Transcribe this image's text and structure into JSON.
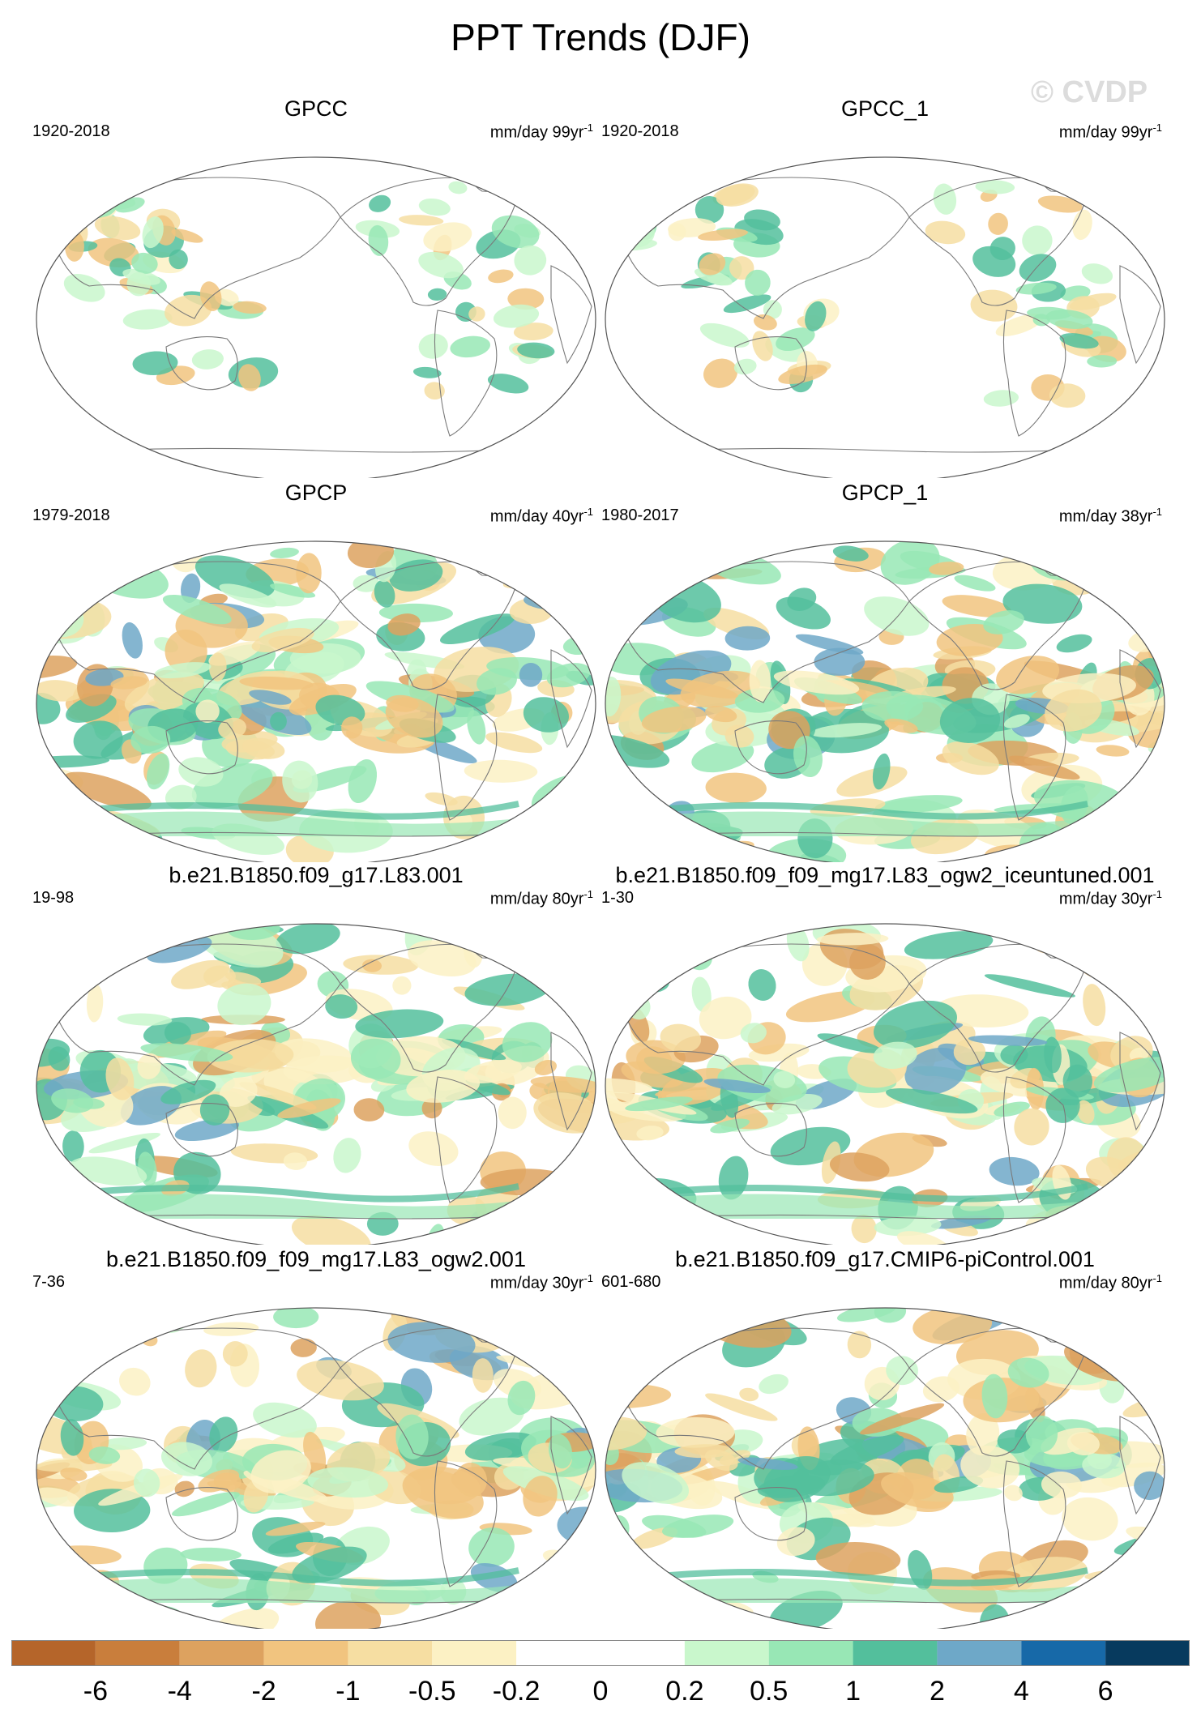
{
  "title": "PPT Trends (DJF)",
  "watermark": "© CVDP",
  "panels": [
    {
      "title": "GPCC",
      "period": "1920-2018",
      "units": "mm/day 99yr",
      "units_exp": "-1",
      "field": "sparse"
    },
    {
      "title": "GPCC_1",
      "period": "1920-2018",
      "units": "mm/day 99yr",
      "units_exp": "-1",
      "field": "sparse"
    },
    {
      "title": "GPCP",
      "period": "1979-2018",
      "units": "mm/day 40yr",
      "units_exp": "-1",
      "field": "dense"
    },
    {
      "title": "GPCP_1",
      "period": "1980-2017",
      "units": "mm/day 38yr",
      "units_exp": "-1",
      "field": "dense"
    },
    {
      "title": "b.e21.B1850.f09_g17.L83.001",
      "period": "19-98",
      "units": "mm/day 80yr",
      "units_exp": "-1",
      "field": "model"
    },
    {
      "title": "b.e21.B1850.f09_f09_mg17.L83_ogw2_iceuntuned.001",
      "period": "1-30",
      "units": "mm/day 30yr",
      "units_exp": "-1",
      "field": "model"
    },
    {
      "title": "b.e21.B1850.f09_f09_mg17.L83_ogw2.001",
      "period": "7-36",
      "units": "mm/day 30yr",
      "units_exp": "-1",
      "field": "model"
    },
    {
      "title": "b.e21.B1850.f09_g17.CMIP6-piControl.001",
      "period": "601-680",
      "units": "mm/day 80yr",
      "units_exp": "-1",
      "field": "model"
    }
  ],
  "colorbar": {
    "labels": [
      "-6",
      "-4",
      "-2",
      "-1",
      "-0.5",
      "-0.2",
      "0",
      "0.2",
      "0.5",
      "1",
      "2",
      "4",
      "6"
    ],
    "colors": [
      "#b5652a",
      "#c97e3c",
      "#dda25f",
      "#f1c47f",
      "#f6dea2",
      "#fcf1c4",
      "#ffffff",
      "#ffffff",
      "#c9f7cc",
      "#98e7b5",
      "#53bf9c",
      "#6ea8c8",
      "#1769a8",
      "#073a5e"
    ]
  }
}
